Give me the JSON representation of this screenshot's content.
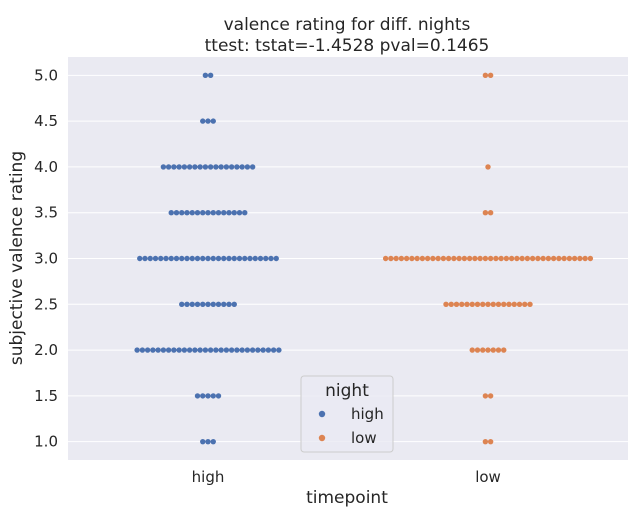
{
  "chart_data": {
    "type": "scatter",
    "style": "swarm",
    "title": "valence rating for diff. nights",
    "subtitle": "ttest: tstat=-1.4528 pval=0.1465",
    "xlabel": "timepoint",
    "ylabel": "subjective valence rating",
    "categories": [
      "high",
      "low"
    ],
    "y_ticks": [
      "1.0",
      "1.5",
      "2.0",
      "2.5",
      "3.0",
      "3.5",
      "4.0",
      "4.5",
      "5.0"
    ],
    "ylim": [
      0.8,
      5.2
    ],
    "grid": true,
    "legend": {
      "title": "night",
      "placement": "lower-center",
      "entries": [
        "high",
        "low"
      ]
    },
    "colors": {
      "high": "#4c72b0",
      "low": "#dd8452",
      "background": "#eaeaf2",
      "grid": "#ffffff"
    },
    "series": [
      {
        "name": "high",
        "category": "high",
        "counts": [
          {
            "y": 1.0,
            "n": 3
          },
          {
            "y": 1.5,
            "n": 5
          },
          {
            "y": 2.0,
            "n": 28
          },
          {
            "y": 2.5,
            "n": 11
          },
          {
            "y": 3.0,
            "n": 27
          },
          {
            "y": 3.5,
            "n": 15
          },
          {
            "y": 4.0,
            "n": 18
          },
          {
            "y": 4.5,
            "n": 3
          },
          {
            "y": 5.0,
            "n": 2
          }
        ]
      },
      {
        "name": "low",
        "category": "low",
        "counts": [
          {
            "y": 1.0,
            "n": 2
          },
          {
            "y": 1.5,
            "n": 2
          },
          {
            "y": 2.0,
            "n": 7
          },
          {
            "y": 2.5,
            "n": 17
          },
          {
            "y": 3.0,
            "n": 40
          },
          {
            "y": 3.5,
            "n": 2
          },
          {
            "y": 4.0,
            "n": 1
          },
          {
            "y": 5.0,
            "n": 2
          }
        ]
      }
    ]
  }
}
